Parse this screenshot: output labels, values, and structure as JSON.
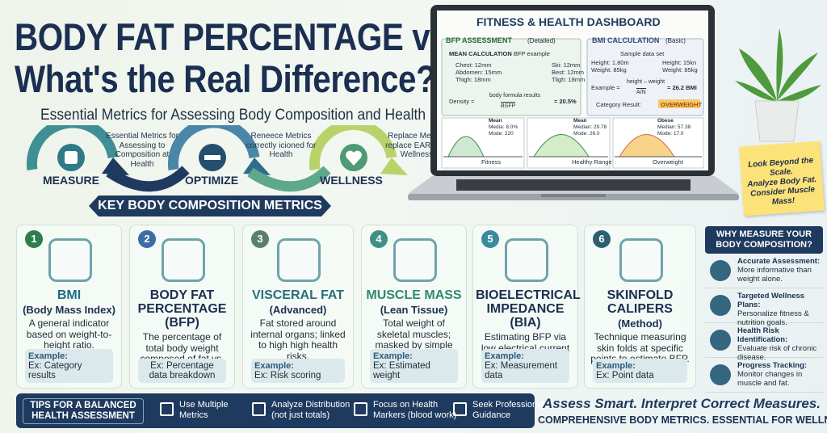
{
  "header": {
    "title_line1": "BODY FAT PERCENTAGE vs BMI",
    "title_line2": "What's the Real Difference?",
    "subtitle": "Essential Metrics for Assessing Body Composition and Health Risk"
  },
  "flow": {
    "steps": [
      "MEASURE",
      "OPTIMIZE",
      "WELLNESS"
    ],
    "notes": [
      "Essential Metrics for Assessing to Composition at Health",
      "Reneece Metrics correctly icioned for Health",
      "Replace Metrics replace EARN for Wellness"
    ]
  },
  "dashboard": {
    "title": "FITNESS & HEALTH DASHBOARD",
    "bfp": {
      "heading": "BFP ASSESSMENT",
      "tag": "(Detailed)",
      "box_title": "MEAN CALCULATION",
      "box_tag": "BFP example",
      "left_rows": [
        "Chest: 12mm",
        "Abdomen: 15mm",
        "Thigh: 18mm"
      ],
      "right_rows": [
        "Ski: 12mm",
        "Best: 12mm",
        "Tligh: 18mm"
      ],
      "formula_label": "Density =",
      "numerator": "body formula results",
      "denominator": "BSFP",
      "result": "= 20.5%"
    },
    "bmi": {
      "heading": "BMI CALCULATION",
      "tag": "(Basic)",
      "sample": "Sample data set",
      "left_rows": [
        "Height: 1.80m",
        "Weight: 85kg"
      ],
      "right_rows": [
        "Height: 15kn",
        "Weight: 85kg"
      ],
      "formula_label": "Example =",
      "numerator": "height – weight",
      "denominator": "A/N",
      "result": "= 26.2 BMI",
      "category_label": "Category Result:",
      "category": "OVERWEIGHT"
    },
    "charts": [
      {
        "stats": [
          "Mean",
          "Media: 8.0%",
          "Mode: 220"
        ],
        "label": "Fitness"
      },
      {
        "stats": [
          "Mean",
          "Median: 29.78",
          "Mode: 26.0"
        ],
        "label": "Healthy Range"
      },
      {
        "stats": [
          "Obese",
          "Median: 57.38",
          "Mode: 17.0"
        ],
        "label": "Overweight"
      }
    ]
  },
  "sticky_note": [
    "Look Beyond the Scale.",
    "Analyze Body Fat.",
    "Consider Muscle Mass!"
  ],
  "section_title": "KEY BODY COMPOSITION METRICS",
  "cards": [
    {
      "number": 1,
      "title": "BMI",
      "subtitle": "(Body Mass Index)",
      "description": "A general indicator based on weight-to-height ratio.",
      "example_label": "Example:",
      "example": "Ex: Category results"
    },
    {
      "number": 2,
      "title": "BODY FAT PERCENTAGE (BFP)",
      "description": "The percentage of total body weight composed of fat vs. lean tissue.",
      "example": "Ex: Percentage data breakdown"
    },
    {
      "number": 3,
      "title": "VISCERAL FAT",
      "subtitle": "(Advanced)",
      "description": "Fat stored around internal organs; linked to high high health risks.",
      "example_label": "Example:",
      "example": "Ex: Risk scoring"
    },
    {
      "number": 4,
      "title": "MUSCLE MASS",
      "subtitle": "(Lean Tissue)",
      "description": "Total weight of skeletal muscles; masked by simple scale weight.",
      "example_label": "Example:",
      "example": "Ex: Estimated weight"
    },
    {
      "number": 5,
      "title": "BIOELECTRICAL IMPEDANCE (BIA)",
      "description": "Estimating BFP via low electrical current to measure body density.",
      "example_label": "Example:",
      "example": "Ex: Measurement data"
    },
    {
      "number": 6,
      "title": "SKINFOLD CALIPERS",
      "subtitle": "(Method)",
      "description": "Technique measuring skin folds at specific points to estimate BFP.",
      "example_label": "Example:",
      "example": "Ex: Point data"
    }
  ],
  "sidebar": {
    "title": "WHY MEASURE YOUR BODY COMPOSITION?",
    "items": [
      {
        "title": "Accurate Assessment:",
        "text": "More informative than weight alone."
      },
      {
        "title": "Targeted Wellness Plans:",
        "text": "Personalize fitness & nutrition goals."
      },
      {
        "title": "Health Risk Identification:",
        "text": "Evaluate risk of chronic disease."
      },
      {
        "title": "Progress Tracking:",
        "text": "Monitor changes in muscle and fat."
      }
    ]
  },
  "tips": {
    "title": "TIPS FOR A BALANCED HEALTH ASSESSMENT",
    "items": [
      "Use Multiple Metrics",
      "Analyze Distribution (not just totals)",
      "Focus on Health Markers (blood work)",
      "Seek Professional Guidance"
    ]
  },
  "footer": {
    "tagline": "Assess Smart. Interpret Correct Measures.",
    "banner": "COMPREHENSIVE BODY METRICS. ESSENTIAL FOR WELLNESS."
  }
}
